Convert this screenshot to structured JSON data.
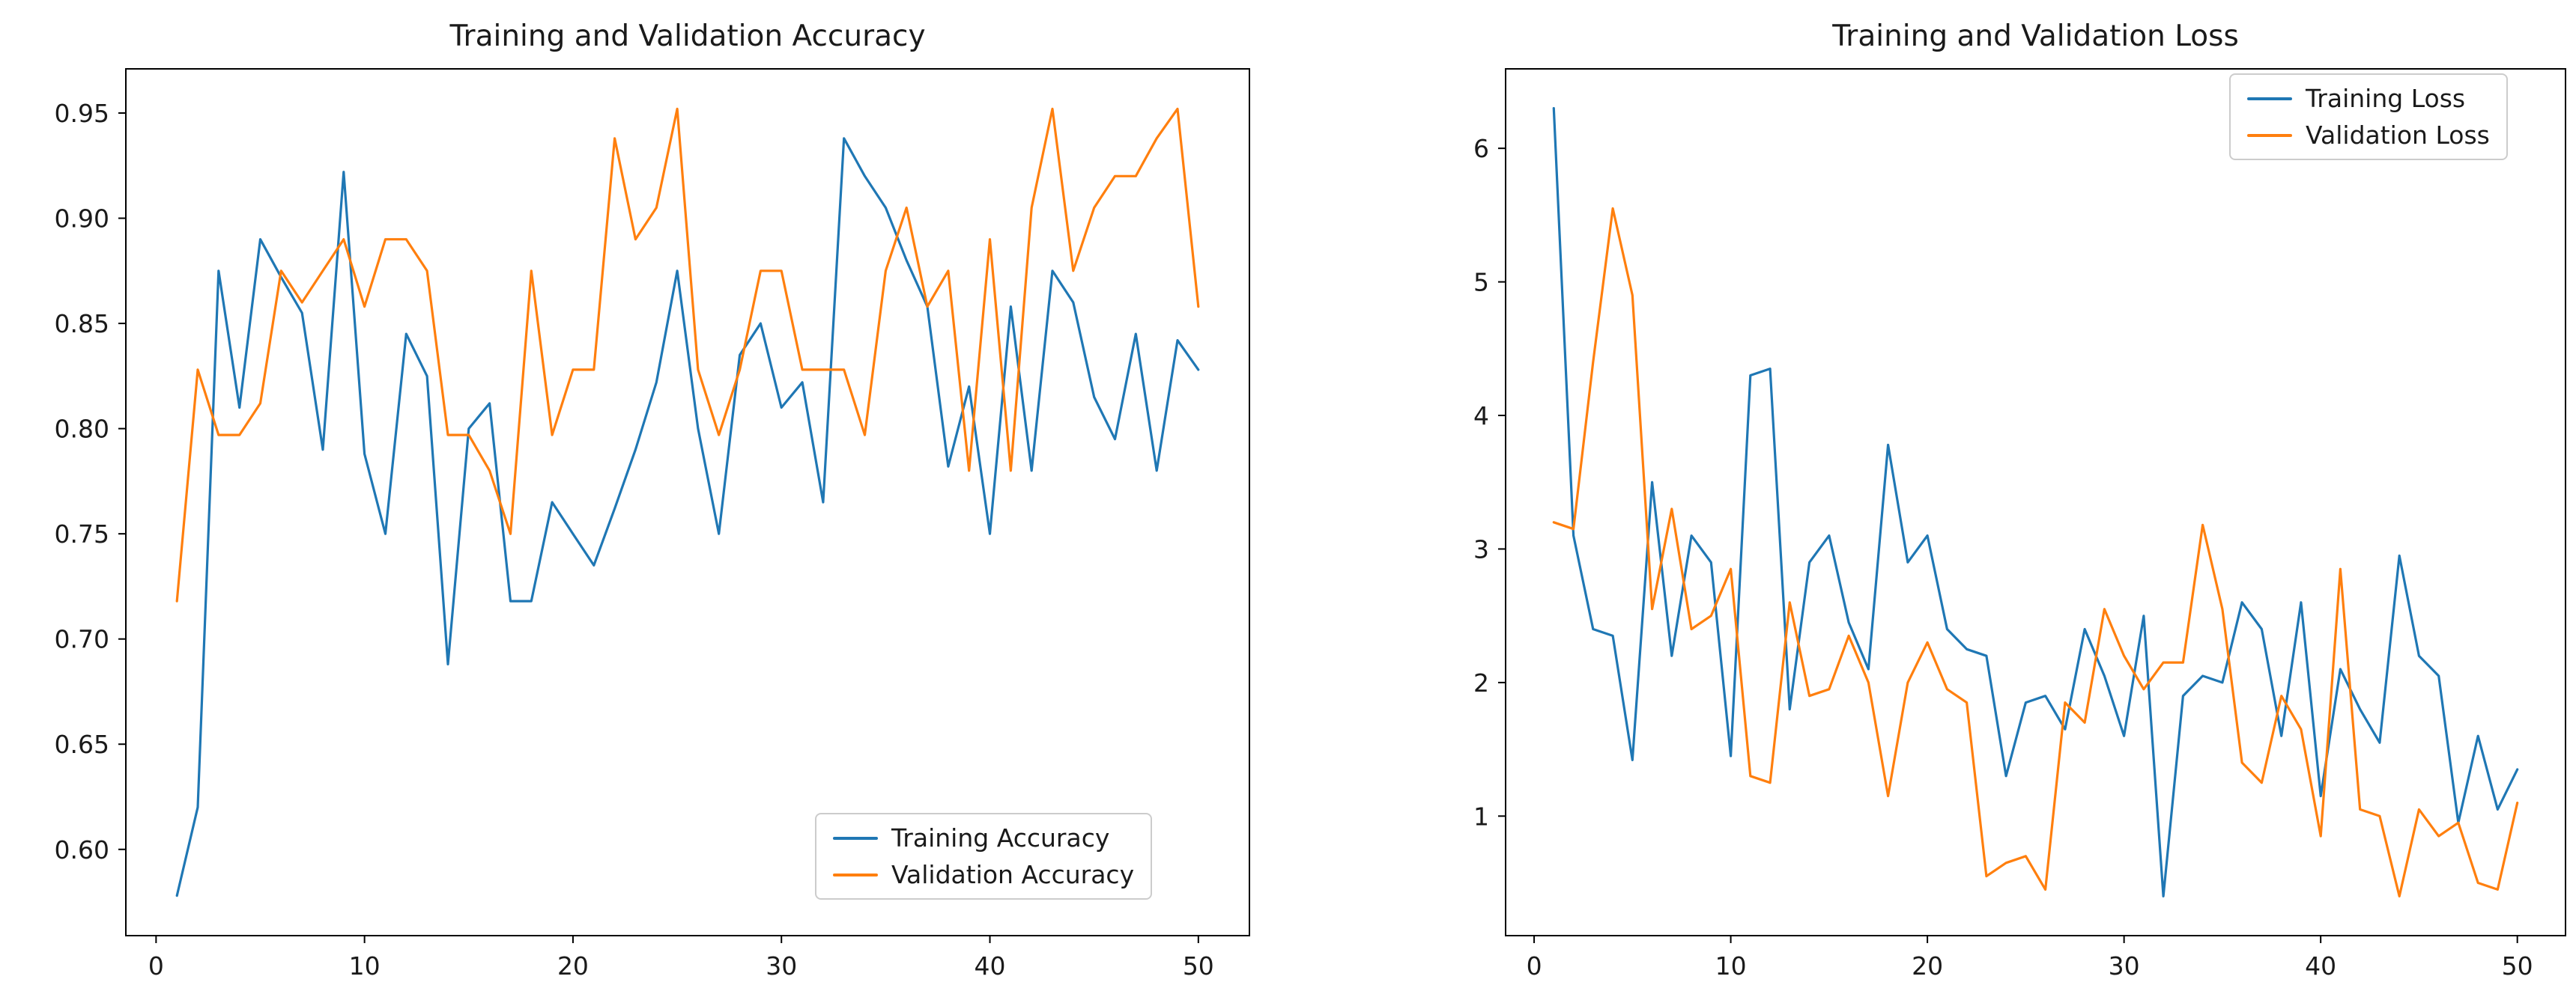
{
  "figure": {
    "background": "#ffffff"
  },
  "chart_data": [
    {
      "type": "line",
      "title": "Training and Validation Accuracy",
      "xlabel": "",
      "ylabel": "",
      "grid": false,
      "legend_position": "lower right",
      "xlim": [
        -1.45,
        52.45
      ],
      "ylim": [
        0.559,
        0.971
      ],
      "xticks": [
        0,
        10,
        20,
        30,
        40,
        50
      ],
      "xtick_labels": [
        "0",
        "10",
        "20",
        "30",
        "40",
        "50"
      ],
      "yticks": [
        0.6,
        0.65,
        0.7,
        0.75,
        0.8,
        0.85,
        0.9,
        0.95
      ],
      "ytick_labels": [
        "0.60",
        "0.65",
        "0.70",
        "0.75",
        "0.80",
        "0.85",
        "0.90",
        "0.95"
      ],
      "x": [
        1,
        2,
        3,
        4,
        5,
        6,
        7,
        8,
        9,
        10,
        11,
        12,
        13,
        14,
        15,
        16,
        17,
        18,
        19,
        20,
        21,
        22,
        23,
        24,
        25,
        26,
        27,
        28,
        29,
        30,
        31,
        32,
        33,
        34,
        35,
        36,
        37,
        38,
        39,
        40,
        41,
        42,
        43,
        44,
        45,
        46,
        47,
        48,
        49,
        50
      ],
      "series": [
        {
          "name": "Training Accuracy",
          "color": "#1f77b4",
          "values": [
            0.578,
            0.62,
            0.875,
            0.81,
            0.89,
            0.872,
            0.855,
            0.79,
            0.922,
            0.788,
            0.75,
            0.845,
            0.825,
            0.688,
            0.8,
            0.812,
            0.718,
            0.718,
            0.765,
            0.75,
            0.735,
            0.762,
            0.79,
            0.822,
            0.875,
            0.8,
            0.75,
            0.835,
            0.85,
            0.81,
            0.822,
            0.765,
            0.938,
            0.92,
            0.905,
            0.88,
            0.858,
            0.782,
            0.82,
            0.75,
            0.858,
            0.78,
            0.875,
            0.86,
            0.815,
            0.795,
            0.845,
            0.78,
            0.842,
            0.828
          ]
        },
        {
          "name": "Validation Accuracy",
          "color": "#ff7f0e",
          "values": [
            0.718,
            0.828,
            0.797,
            0.797,
            0.812,
            0.875,
            0.86,
            0.875,
            0.89,
            0.858,
            0.89,
            0.89,
            0.875,
            0.797,
            0.797,
            0.78,
            0.75,
            0.875,
            0.797,
            0.828,
            0.828,
            0.938,
            0.89,
            0.905,
            0.952,
            0.828,
            0.797,
            0.828,
            0.875,
            0.875,
            0.828,
            0.828,
            0.828,
            0.797,
            0.875,
            0.905,
            0.858,
            0.875,
            0.78,
            0.89,
            0.78,
            0.905,
            0.952,
            0.875,
            0.905,
            0.92,
            0.92,
            0.938,
            0.952,
            0.858
          ]
        }
      ]
    },
    {
      "type": "line",
      "title": "Training and Validation Loss",
      "xlabel": "",
      "ylabel": "",
      "grid": false,
      "legend_position": "upper right",
      "xlim": [
        -1.45,
        52.45
      ],
      "ylim": [
        0.105,
        6.595
      ],
      "xticks": [
        0,
        10,
        20,
        30,
        40,
        50
      ],
      "xtick_labels": [
        "0",
        "10",
        "20",
        "30",
        "40",
        "50"
      ],
      "yticks": [
        1,
        2,
        3,
        4,
        5,
        6
      ],
      "ytick_labels": [
        "1",
        "2",
        "3",
        "4",
        "5",
        "6"
      ],
      "x": [
        1,
        2,
        3,
        4,
        5,
        6,
        7,
        8,
        9,
        10,
        11,
        12,
        13,
        14,
        15,
        16,
        17,
        18,
        19,
        20,
        21,
        22,
        23,
        24,
        25,
        26,
        27,
        28,
        29,
        30,
        31,
        32,
        33,
        34,
        35,
        36,
        37,
        38,
        39,
        40,
        41,
        42,
        43,
        44,
        45,
        46,
        47,
        48,
        49,
        50
      ],
      "series": [
        {
          "name": "Training Loss",
          "color": "#1f77b4",
          "values": [
            6.3,
            3.1,
            2.4,
            2.35,
            1.42,
            3.5,
            2.2,
            3.1,
            2.9,
            1.45,
            4.3,
            4.35,
            1.8,
            2.9,
            3.1,
            2.45,
            2.1,
            3.78,
            2.9,
            3.1,
            2.4,
            2.25,
            2.2,
            1.3,
            1.85,
            1.9,
            1.65,
            2.4,
            2.05,
            1.6,
            2.5,
            0.4,
            1.9,
            2.05,
            2.0,
            2.6,
            2.4,
            1.6,
            2.6,
            1.15,
            2.1,
            1.8,
            1.55,
            2.95,
            2.2,
            2.05,
            0.95,
            1.6,
            1.05,
            1.35
          ]
        },
        {
          "name": "Validation Loss",
          "color": "#ff7f0e",
          "values": [
            3.2,
            3.15,
            4.4,
            5.55,
            4.9,
            2.55,
            3.3,
            2.4,
            2.5,
            2.85,
            1.3,
            1.25,
            2.6,
            1.9,
            1.95,
            2.35,
            2.0,
            1.15,
            2.0,
            2.3,
            1.95,
            1.85,
            0.55,
            0.65,
            0.7,
            0.45,
            1.85,
            1.7,
            2.55,
            2.2,
            1.95,
            2.15,
            2.15,
            3.18,
            2.55,
            1.4,
            1.25,
            1.9,
            1.65,
            0.85,
            2.85,
            1.05,
            1.0,
            0.4,
            1.05,
            0.85,
            0.95,
            0.5,
            0.45,
            1.1
          ]
        }
      ]
    }
  ]
}
